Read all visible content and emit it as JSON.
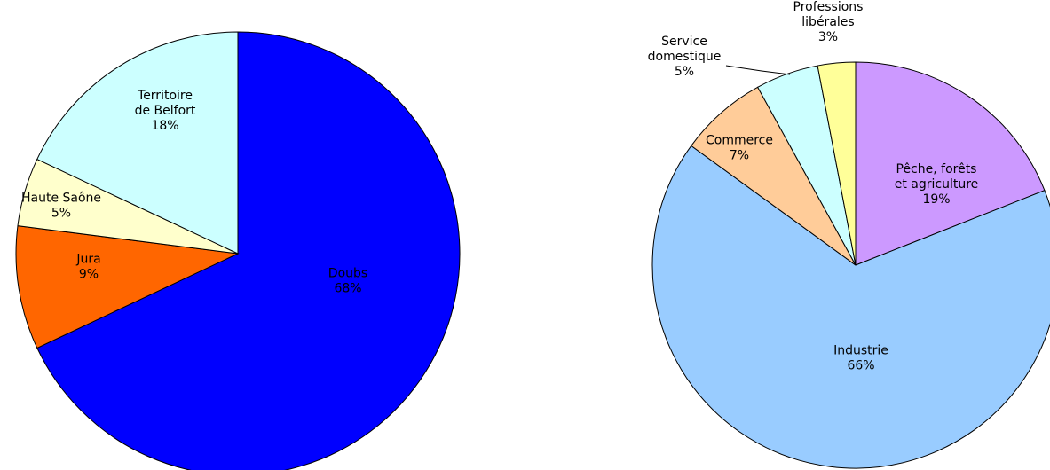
{
  "chart_data": [
    {
      "type": "pie",
      "title": "",
      "slices": [
        {
          "label": "Doubs",
          "value": 68,
          "value_label": "68%",
          "color": "#0000FF"
        },
        {
          "label": "Jura",
          "value": 9,
          "value_label": "9%",
          "color": "#FF6600"
        },
        {
          "label": "Haute Saône",
          "value": 5,
          "value_label": "5%",
          "color": "#FFFFCC"
        },
        {
          "label": "Territoire de Belfort",
          "value": 18,
          "value_label": "18%",
          "color": "#CCFFFF"
        }
      ]
    },
    {
      "type": "pie",
      "title": "",
      "slices": [
        {
          "label": "Pêche, forêts et agriculture",
          "value": 19,
          "value_label": "19%",
          "color": "#CC99FF"
        },
        {
          "label": "Industrie",
          "value": 66,
          "value_label": "66%",
          "color": "#99CCFF"
        },
        {
          "label": "Commerce",
          "value": 7,
          "value_label": "7%",
          "color": "#FFCC99"
        },
        {
          "label": "Service domestique",
          "value": 5,
          "value_label": "5%",
          "color": "#CCFFFF"
        },
        {
          "label": "Professions libérales",
          "value": 3,
          "value_label": "3%",
          "color": "#FFFF99"
        }
      ]
    }
  ]
}
